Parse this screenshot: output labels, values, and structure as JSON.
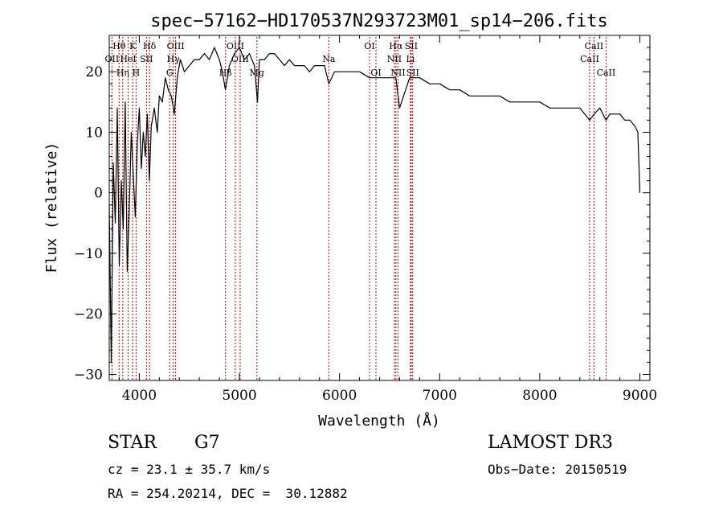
{
  "chart_data": {
    "type": "line",
    "title": "spec−57162−HD170537N293723M01_sp14−206.fits",
    "xlabel": "Wavelength (Å)",
    "ylabel": "Flux (relative)",
    "xlim": [
      3700,
      9100
    ],
    "ylim": [
      -31,
      26
    ],
    "xticks": [
      4000,
      5000,
      6000,
      7000,
      8000,
      9000
    ],
    "xtick_labels": [
      "4000",
      "5000",
      "6000",
      "7000",
      "8000",
      "9000"
    ],
    "yticks": [
      -30,
      -20,
      -10,
      0,
      10,
      20
    ],
    "ytick_labels": [
      "−30",
      "−20",
      "−10",
      "0",
      "10",
      "20"
    ],
    "series": [
      {
        "name": "flux",
        "x": [
          3700,
          3720,
          3740,
          3760,
          3780,
          3800,
          3820,
          3840,
          3860,
          3880,
          3900,
          3920,
          3940,
          3960,
          3980,
          4000,
          4020,
          4040,
          4060,
          4080,
          4100,
          4120,
          4150,
          4180,
          4200,
          4230,
          4260,
          4290,
          4320,
          4350,
          4380,
          4410,
          4450,
          4500,
          4550,
          4600,
          4650,
          4700,
          4750,
          4800,
          4830,
          4860,
          4900,
          4950,
          5000,
          5050,
          5100,
          5150,
          5180,
          5200,
          5250,
          5300,
          5350,
          5400,
          5450,
          5500,
          5550,
          5600,
          5650,
          5700,
          5750,
          5800,
          5850,
          5893,
          5950,
          6000,
          6100,
          6200,
          6300,
          6400,
          6500,
          6563,
          6600,
          6700,
          6800,
          6900,
          7000,
          7100,
          7200,
          7300,
          7400,
          7500,
          7600,
          7700,
          7800,
          7900,
          8000,
          8100,
          8200,
          8300,
          8400,
          8498,
          8542,
          8600,
          8662,
          8700,
          8800,
          8850,
          8900,
          8950,
          8980,
          9000
        ],
        "y": [
          -2,
          -28,
          5,
          -5,
          14,
          -12,
          2,
          -6,
          15,
          -13,
          -3,
          10,
          3,
          -4,
          8,
          14,
          4,
          10,
          6,
          13,
          2,
          11,
          14,
          10,
          16,
          15,
          19,
          17,
          16,
          13,
          19,
          22,
          20,
          21,
          22,
          22,
          23,
          22,
          24,
          22,
          20,
          17,
          21,
          23,
          24,
          22,
          23,
          21,
          15,
          22,
          22,
          23,
          23,
          22,
          21,
          22,
          21,
          21,
          21,
          20,
          21,
          21,
          21,
          18,
          20,
          20,
          20,
          20,
          19,
          19,
          19,
          19,
          14,
          19,
          19,
          18,
          18,
          17,
          17,
          16,
          16,
          16,
          16,
          15,
          15,
          15,
          15,
          14,
          14,
          14,
          14,
          12,
          13,
          14,
          12,
          13,
          13,
          12,
          12,
          11,
          10,
          0
        ]
      }
    ],
    "lines": [
      {
        "name": "Hθ",
        "wl": 3798,
        "row": 0
      },
      {
        "name": "OII",
        "wl": 3727,
        "row": 1
      },
      {
        "name": "Hη",
        "wl": 3835,
        "row": 2
      },
      {
        "name": "HeI",
        "wl": 3889,
        "row": 1
      },
      {
        "name": "K",
        "wl": 3934,
        "row": 0
      },
      {
        "name": "H",
        "wl": 3968,
        "row": 2
      },
      {
        "name": "SII",
        "wl": 4072,
        "row": 1
      },
      {
        "name": "Hδ",
        "wl": 4102,
        "row": 0
      },
      {
        "name": "OIII",
        "wl": 4363,
        "row": 0
      },
      {
        "name": "Hγ",
        "wl": 4340,
        "row": 1
      },
      {
        "name": "G",
        "wl": 4304,
        "row": 2
      },
      {
        "name": "Hβ",
        "wl": 4861,
        "row": 2
      },
      {
        "name": "OIII",
        "wl": 4959,
        "row": 0
      },
      {
        "name": "OIII",
        "wl": 5007,
        "row": 1
      },
      {
        "name": "Mg",
        "wl": 5175,
        "row": 2
      },
      {
        "name": "Na",
        "wl": 5893,
        "row": 1
      },
      {
        "name": "OI",
        "wl": 6300,
        "row": 0
      },
      {
        "name": "OI",
        "wl": 6364,
        "row": 2
      },
      {
        "name": "Hα",
        "wl": 6563,
        "row": 0
      },
      {
        "name": "NII",
        "wl": 6548,
        "row": 1
      },
      {
        "name": "NII",
        "wl": 6584,
        "row": 2
      },
      {
        "name": "SII",
        "wl": 6716,
        "row": 0
      },
      {
        "name": "Li",
        "wl": 6708,
        "row": 1
      },
      {
        "name": "SII",
        "wl": 6731,
        "row": 2
      },
      {
        "name": "CaII",
        "wl": 8542,
        "row": 0
      },
      {
        "name": "CaII",
        "wl": 8498,
        "row": 1
      },
      {
        "name": "CaII",
        "wl": 8662,
        "row": 2
      }
    ]
  },
  "footer": {
    "object_class": "STAR",
    "subclass": "G7",
    "survey": "LAMOST DR3",
    "redshift": "cz = 23.1 ± 35.7 km/s",
    "obs_date": "Obs−Date: 20150519",
    "coords": "RA = 254.20214, DEC =  30.12882"
  }
}
